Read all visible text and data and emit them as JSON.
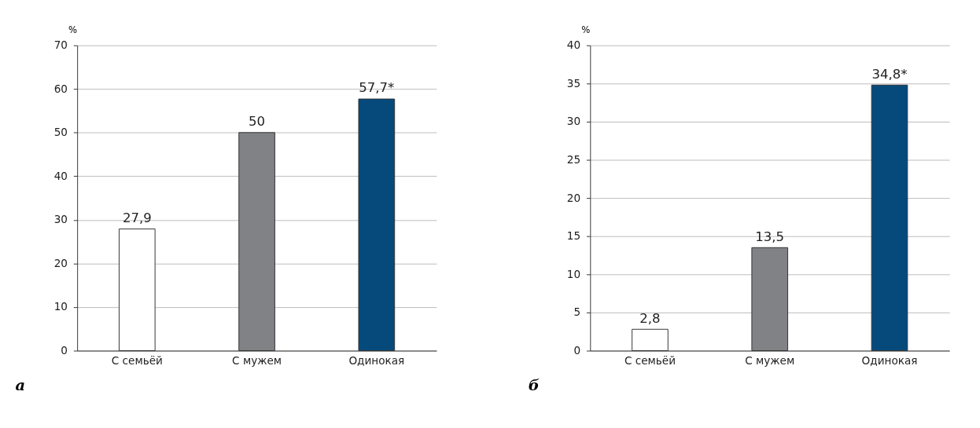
{
  "chart_data": [
    {
      "type": "bar",
      "ylabel": "%",
      "categories": [
        "С семьёй",
        "С мужем",
        "Одинокая"
      ],
      "values": [
        27.9,
        50,
        57.7
      ],
      "colors": [
        "#ffffff",
        "#808285",
        "#064a7c"
      ],
      "value_labels": [
        "27,9",
        "50",
        "57,7*"
      ],
      "ylim": [
        0,
        70
      ],
      "yticks": [
        0,
        10,
        20,
        30,
        40,
        50,
        60,
        70
      ],
      "grid": "y",
      "annotations": [
        "а"
      ]
    },
    {
      "type": "bar",
      "ylabel": "%",
      "categories": [
        "С семьёй",
        "С мужем",
        "Одинокая"
      ],
      "values": [
        2.8,
        13.5,
        34.8
      ],
      "colors": [
        "#ffffff",
        "#808285",
        "#064a7c"
      ],
      "value_labels": [
        "2,8",
        "13,5",
        "34,8*"
      ],
      "ylim": [
        0,
        40
      ],
      "yticks": [
        0,
        5,
        10,
        15,
        20,
        25,
        30,
        35,
        40
      ],
      "grid": "y",
      "annotations": [
        "б"
      ]
    }
  ]
}
